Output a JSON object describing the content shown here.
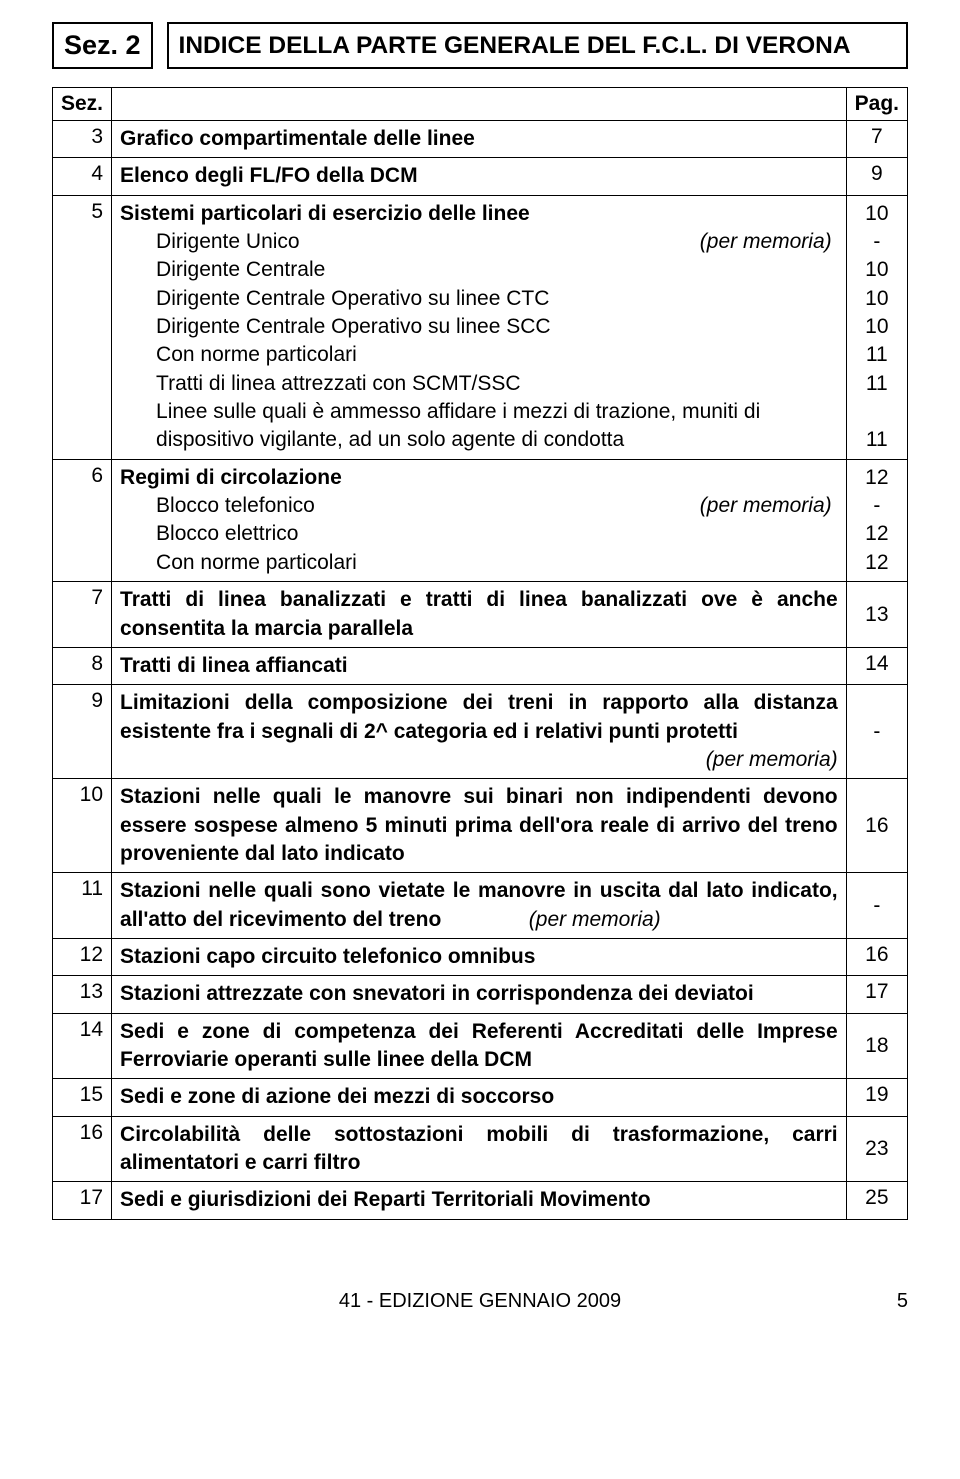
{
  "header": {
    "sez_label": "Sez. 2",
    "title": "INDICE DELLA PARTE GENERALE DEL F.C.L. DI VERONA"
  },
  "col_headers": {
    "sez": "Sez.",
    "pag": "Pag."
  },
  "memo": "(per memoria)",
  "rows": {
    "r3": {
      "n": "3",
      "t": "Grafico compartimentale delle linee",
      "p": "7"
    },
    "r4": {
      "n": "4",
      "t": "Elenco degli FL/FO della DCM",
      "p": "9"
    },
    "r5": {
      "n": "5",
      "t": "Sistemi particolari di esercizio delle linee",
      "subs": {
        "a": "Dirigente Unico",
        "b": "Dirigente Centrale",
        "c": "Dirigente Centrale Operativo su linee CTC",
        "d": "Dirigente Centrale Operativo su linee SCC",
        "e": "Con norme particolari",
        "f": "Tratti di linea attrezzati con SCMT/SSC",
        "g": "Linee sulle quali è ammesso affidare i mezzi di trazione, muniti di dispositivo vigilante, ad un solo agente di condotta"
      },
      "pags": [
        "10",
        "-",
        "10",
        "10",
        "10",
        "11",
        "11",
        "11"
      ]
    },
    "r6": {
      "n": "6",
      "t": "Regimi di circolazione",
      "subs": {
        "a": "Blocco telefonico",
        "b": "Blocco elettrico",
        "c": "Con norme particolari"
      },
      "pags": [
        "12",
        "-",
        "12",
        "12"
      ]
    },
    "r7": {
      "n": "7",
      "t": "Tratti di linea banalizzati e tratti di linea banalizzati ove è anche consentita la marcia parallela",
      "p": "13"
    },
    "r8": {
      "n": "8",
      "t": "Tratti di linea affiancati",
      "p": "14"
    },
    "r9": {
      "n": "9",
      "t1": "Limitazioni della composizione dei treni in rapporto alla distanza esistente fra i segnali di 2^ categoria ed i relativi punti protetti",
      "p": "-"
    },
    "r10": {
      "n": "10",
      "t": "Stazioni nelle quali le manovre sui binari non indipendenti devono essere sospese almeno 5 minuti prima dell'ora reale di arrivo del treno proveniente dal lato indicato",
      "p": "16"
    },
    "r11": {
      "n": "11",
      "t1": "Stazioni nelle quali sono vietate le manovre in uscita dal lato indicato, all'atto del ricevimento del treno",
      "p": "-"
    },
    "r12": {
      "n": "12",
      "t": "Stazioni capo circuito telefonico omnibus",
      "p": "16"
    },
    "r13": {
      "n": "13",
      "t": "Stazioni attrezzate con snevatori in corrispondenza dei deviatoi",
      "p": "17"
    },
    "r14": {
      "n": "14",
      "t": "Sedi e zone di competenza dei Referenti Accreditati delle Imprese Ferroviarie operanti sulle linee della DCM",
      "p": "18"
    },
    "r15": {
      "n": "15",
      "t": "Sedi e zone di azione dei mezzi di soccorso",
      "p": "19"
    },
    "r16": {
      "n": "16",
      "t": "Circolabilità delle sottostazioni mobili di trasformazione, carri alimentatori e carri filtro",
      "p": "23"
    },
    "r17": {
      "n": "17",
      "t": "Sedi e giurisdizioni dei Reparti Territoriali Movimento",
      "p": "25"
    }
  },
  "footer": {
    "edition": "41 - EDIZIONE GENNAIO 2009",
    "page": "5"
  }
}
